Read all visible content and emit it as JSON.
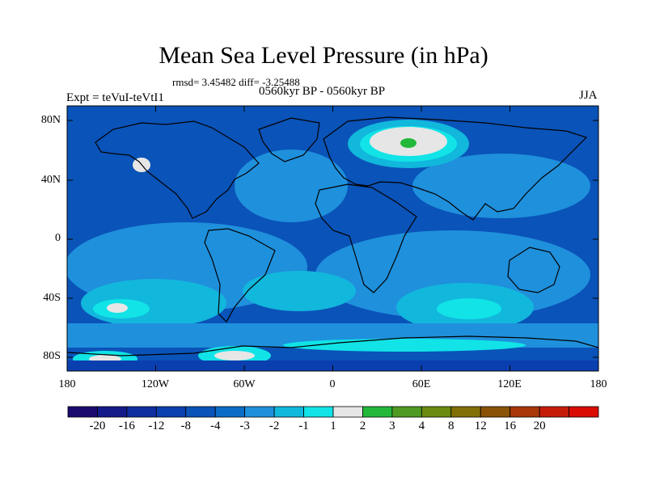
{
  "title": "Mean Sea Level Pressure (in hPa)",
  "stats": "rmsd= 3.45482 diff= -3.25488",
  "expt": "Expt = teVuI-teVtI1",
  "period": "0560kyr BP - 0560kyr BP",
  "season": "JJA",
  "lat_ticks": [
    "80N",
    "40N",
    "0",
    "40S",
    "80S"
  ],
  "lon_ticks": [
    "180",
    "120W",
    "60W",
    "0",
    "60E",
    "120E",
    "180"
  ],
  "colorbar": {
    "labels": [
      "-20",
      "-16",
      "-12",
      "-8",
      "-4",
      "-3",
      "-2",
      "-1",
      "1",
      "2",
      "3",
      "4",
      "8",
      "12",
      "16",
      "20"
    ],
    "colors": [
      "#1b0a6e",
      "#151c8a",
      "#0f2ea0",
      "#0a3fb0",
      "#0a53b8",
      "#0b6cc6",
      "#1f90dc",
      "#12b7dc",
      "#11e3e6",
      "#e6e6e6",
      "#22b83a",
      "#4f9a22",
      "#6b8a10",
      "#826f08",
      "#8a5206",
      "#a83808",
      "#c41c06",
      "#d90c04"
    ]
  },
  "map_fields": {
    "base": "#0a53b8",
    "ocean_mid": "#1f90dc",
    "ocean_light": "#12b7dc",
    "cyan": "#11e3e6",
    "white": "#e6e6e6",
    "green": "#22b83a",
    "dark": "#0a3fb0"
  }
}
